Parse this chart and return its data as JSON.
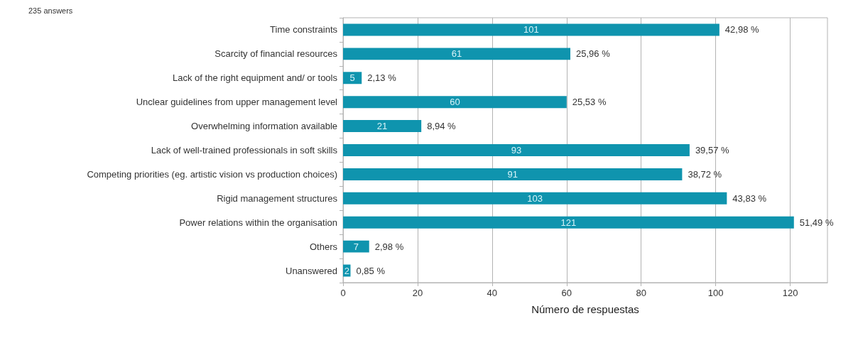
{
  "chart_data": {
    "type": "bar",
    "orientation": "horizontal",
    "subtitle": "235 answers",
    "xlabel": "Número de respuestas",
    "categories": [
      "Time constraints",
      "Scarcity of financial resources",
      "Lack of the right equipment and/ or tools",
      "Unclear guidelines from upper management level",
      "Overwhelming information available",
      "Lack of well-trained professionals in soft skills",
      "Competing priorities (eg. artistic vision vs production choices)",
      "Rigid management structures",
      "Power relations within the organisation",
      "Others",
      "Unanswered"
    ],
    "values": [
      101,
      61,
      5,
      60,
      21,
      93,
      91,
      103,
      121,
      7,
      2
    ],
    "color": "#0f94ae",
    "data_labels": true,
    "xlim": [
      0,
      130
    ],
    "xticks": [
      0,
      20,
      40,
      60,
      80,
      100,
      120
    ],
    "grid": "x",
    "annotations": [
      {
        "text": "42,98 %",
        "x": 101,
        "y": "Time constraints"
      },
      {
        "text": "25,96 %",
        "x": 61,
        "y": "Scarcity of financial resources"
      },
      {
        "text": "2,13 %",
        "x": 5,
        "y": "Lack of the right equipment and/ or tools"
      },
      {
        "text": "25,53 %",
        "x": 60,
        "y": "Unclear guidelines from upper management level"
      },
      {
        "text": "8,94 %",
        "x": 21,
        "y": "Overwhelming information available"
      },
      {
        "text": "39,57 %",
        "x": 93,
        "y": "Lack of well-trained professionals in soft skills"
      },
      {
        "text": "38,72 %",
        "x": 91,
        "y": "Competing priorities (eg. artistic vision vs production choices)"
      },
      {
        "text": "43,83 %",
        "x": 103,
        "y": "Rigid management structures"
      },
      {
        "text": "51,49 %",
        "x": 121,
        "y": "Power relations within the organisation"
      },
      {
        "text": "2,98 %",
        "x": 7,
        "y": "Others"
      },
      {
        "text": "0,85 %",
        "x": 2,
        "y": "Unanswered"
      }
    ]
  }
}
